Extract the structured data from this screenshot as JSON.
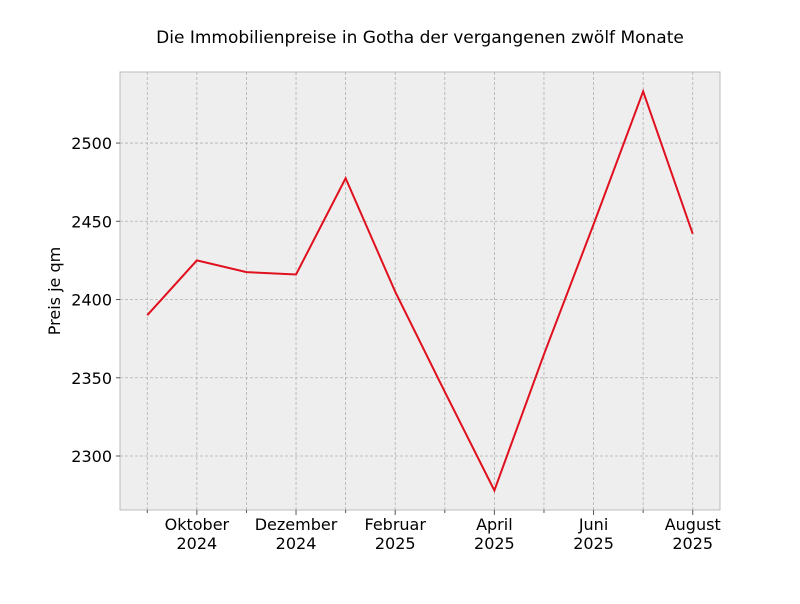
{
  "chart_data": {
    "type": "line",
    "title": "Die Immobilienpreise in Gotha der vergangenen zwölf Monate",
    "y_label": "Preis je qm",
    "categories": [
      null,
      "Oktober\n2024",
      null,
      "Dezember\n2024",
      null,
      "Februar\n2025",
      null,
      "April\n2025",
      null,
      "Juni\n2025",
      null,
      "August\n2025"
    ],
    "series": [
      {
        "name": "Preis je qm",
        "color": "#e0101e",
        "values": [
          2390,
          2425,
          2417.5,
          2416,
          2477.5,
          2405,
          2341,
          2278,
          2365,
          2448,
          2533,
          2442
        ]
      }
    ],
    "ylim": [
      2265.5,
      2545.4
    ],
    "yticks": [
      2300,
      2350,
      2400,
      2450,
      2500
    ],
    "grid": true
  }
}
